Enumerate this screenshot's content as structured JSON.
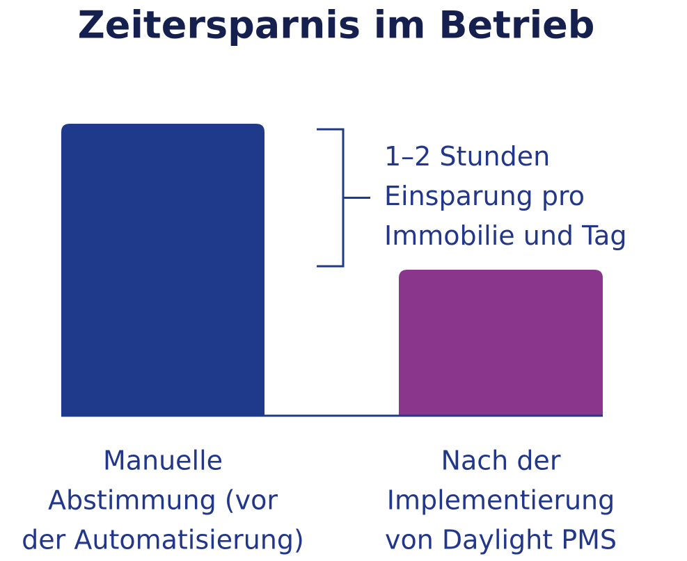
{
  "chart_data": {
    "type": "bar",
    "title": "Zeitersparnis im Betrieb",
    "categories": [
      [
        "Manuelle",
        "Abstimmung (vor",
        "der Automatisierung)"
      ],
      [
        "Nach der",
        "Implementierung",
        "von Daylight PMS"
      ]
    ],
    "values": [
      100,
      50
    ],
    "colors": [
      "#1f3a8a",
      "#8a368c"
    ],
    "ylim": [
      0,
      100
    ],
    "annotation": [
      "1–2 Stunden",
      "Einsparung pro",
      "Immobilie und Tag"
    ]
  }
}
